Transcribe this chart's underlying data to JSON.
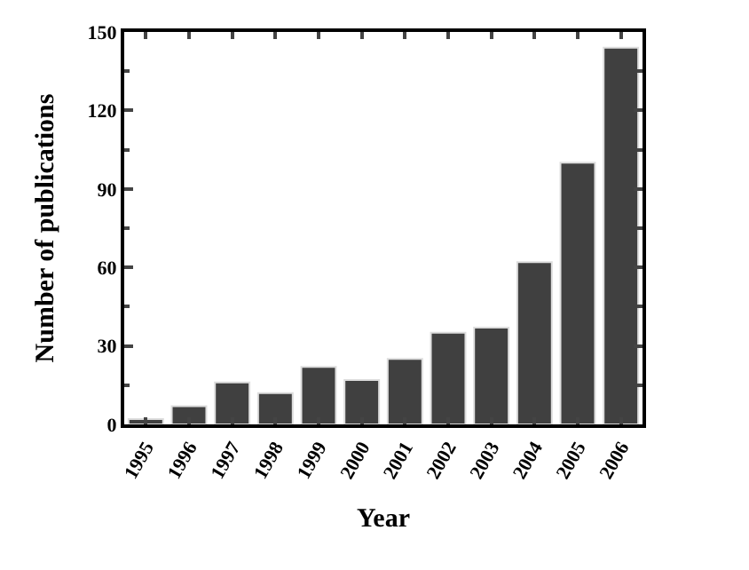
{
  "chart_data": {
    "type": "bar",
    "xlabel": "Year",
    "ylabel": "Number of publications",
    "categories": [
      "1995",
      "1996",
      "1997",
      "1998",
      "1999",
      "2000",
      "2001",
      "2002",
      "2003",
      "2004",
      "2005",
      "2006"
    ],
    "values": [
      2,
      7,
      16,
      12,
      22,
      17,
      25,
      35,
      37,
      62,
      100,
      144
    ],
    "color": "#404040",
    "ylim": [
      0,
      150
    ],
    "yticks": [
      0,
      30,
      60,
      90,
      120,
      150
    ]
  }
}
